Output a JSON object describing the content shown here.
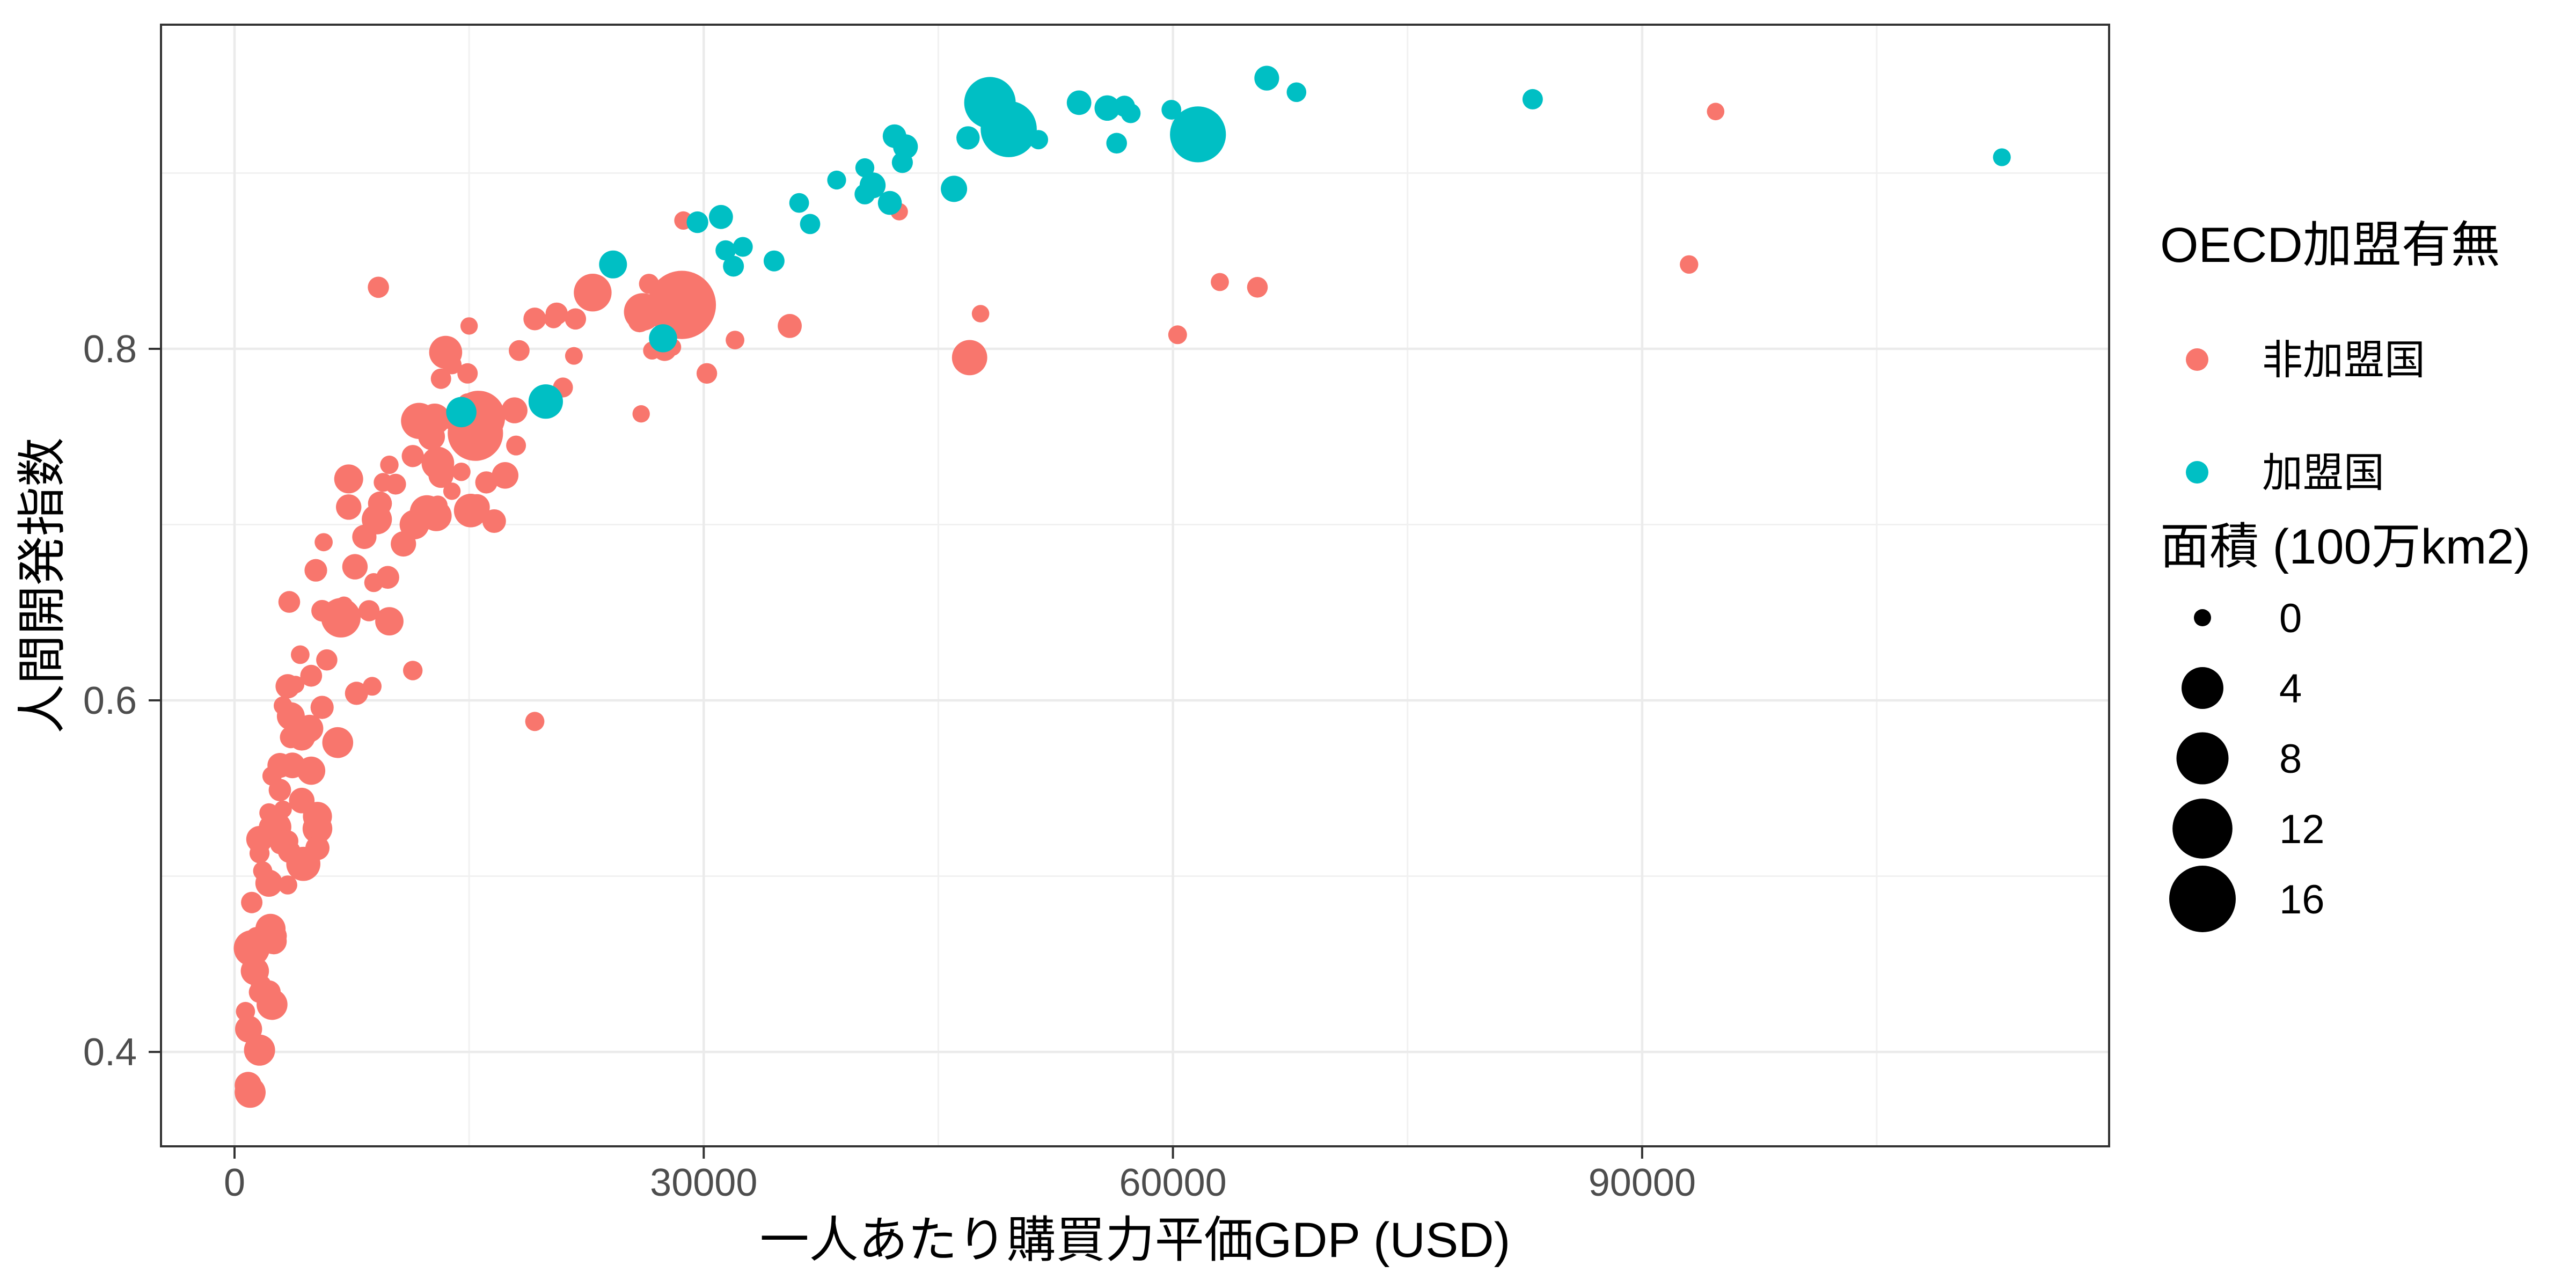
{
  "chart_data": {
    "type": "scatter",
    "title": "",
    "xlabel": "一人あたり購買力平価GDP (USD)",
    "ylabel": "人間開発指数",
    "xlim": [
      -4701,
      119857
    ],
    "ylim": [
      0.3463,
      0.9844
    ],
    "grid": "on",
    "legend_position": "right",
    "x_ticks": {
      "values": [
        0,
        30000,
        60000,
        90000
      ],
      "labels": [
        "0",
        "30000",
        "60000",
        "90000"
      ]
    },
    "y_ticks": {
      "values": [
        0.4,
        0.6,
        0.8
      ],
      "labels": [
        "0.4",
        "0.6",
        "0.8"
      ]
    },
    "x_minor": [
      15000,
      45000,
      75000,
      105000
    ],
    "y_minor": [
      0.5,
      0.7,
      0.9
    ],
    "color_legend": {
      "title": "OECD加盟有無",
      "items": [
        {
          "label": "非加盟国",
          "color": "#F8766D"
        },
        {
          "label": "加盟国",
          "color": "#00BFC4"
        }
      ]
    },
    "size_legend": {
      "title": "面積 (100万km2)",
      "breaks": [
        0,
        4,
        8,
        12,
        16
      ],
      "labels": [
        "0",
        "4",
        "8",
        "12",
        "16"
      ]
    },
    "series": [
      {
        "name": "非加盟国",
        "color": "#F8766D",
        "points": [
          [
            94700,
            0.935,
            0.0007
          ],
          [
            93000,
            0.848,
            0.0116
          ],
          [
            63000,
            0.838,
            0.0058
          ],
          [
            65400,
            0.835,
            0.0836
          ],
          [
            60300,
            0.808,
            0.0178
          ],
          [
            47700,
            0.82,
            0.0008
          ],
          [
            47000,
            0.795,
            2.15
          ],
          [
            35500,
            0.813,
            0.31
          ],
          [
            32000,
            0.805,
            0.0139
          ],
          [
            26700,
            0.799,
            0.0051
          ],
          [
            28000,
            0.801,
            0.0005
          ],
          [
            27500,
            0.8,
            0.331
          ],
          [
            25900,
            0.816,
            0.238
          ],
          [
            26100,
            0.821,
            2.725
          ],
          [
            28600,
            0.825,
            17.098
          ],
          [
            26500,
            0.837,
            0.057
          ],
          [
            21800,
            0.817,
            0.111
          ],
          [
            20400,
            0.817,
            0.0138
          ],
          [
            19200,
            0.817,
            0.208
          ],
          [
            18200,
            0.799,
            0.088
          ],
          [
            22900,
            0.832,
            2.78
          ],
          [
            20600,
            0.82,
            0.176
          ],
          [
            30200,
            0.786,
            0.0754
          ],
          [
            21000,
            0.778,
            0.051
          ],
          [
            26000,
            0.763,
            0.0004
          ],
          [
            28700,
            0.873,
            0.009
          ],
          [
            42500,
            0.878,
            0.0003
          ],
          [
            21700,
            0.796,
            0.002
          ],
          [
            19200,
            0.588,
            0.028
          ],
          [
            17300,
            0.728,
            0.582
          ],
          [
            16600,
            0.702,
            0.268
          ],
          [
            15500,
            0.71,
            0.488
          ],
          [
            15100,
            0.708,
            1.76
          ],
          [
            17900,
            0.765,
            0.513
          ],
          [
            15400,
            0.752,
            9.597
          ],
          [
            15600,
            0.761,
            8.516
          ],
          [
            16100,
            0.724,
            0.164
          ],
          [
            15000,
            0.813,
            0.0004
          ],
          [
            14400,
            0.754,
            0.087
          ],
          [
            18000,
            0.745,
            0.049
          ],
          [
            11800,
            0.759,
            2.382
          ],
          [
            13500,
            0.798,
            1.648
          ],
          [
            13200,
            0.783,
            0.066
          ],
          [
            13900,
            0.791,
            0.029
          ],
          [
            14900,
            0.769,
            0.051
          ],
          [
            16100,
            0.759,
            0.026
          ],
          [
            14900,
            0.786,
            0.07
          ],
          [
            13600,
            0.76,
            0.03
          ],
          [
            12600,
            0.75,
            0.604
          ],
          [
            13000,
            0.711,
            0.034
          ],
          [
            13200,
            0.728,
            0.407
          ],
          [
            12800,
            0.76,
            1.285
          ],
          [
            11500,
            0.758,
            0.276
          ],
          [
            11400,
            0.739,
            0.164
          ],
          [
            13000,
            0.735,
            1.564
          ],
          [
            9900,
            0.734,
            0.011
          ],
          [
            7300,
            0.726,
            0.912
          ],
          [
            9200,
            0.835,
            0.11
          ],
          [
            9500,
            0.724,
            0.0183
          ],
          [
            13900,
            0.719,
            0.0003
          ],
          [
            14500,
            0.73,
            0.0105
          ],
          [
            12900,
            0.705,
            1.221
          ],
          [
            12300,
            0.707,
            1.905
          ],
          [
            11500,
            0.7,
            1.001
          ],
          [
            9100,
            0.703,
            1.099
          ],
          [
            9300,
            0.712,
            0.3
          ],
          [
            8300,
            0.693,
            0.331
          ],
          [
            7700,
            0.676,
            0.447
          ],
          [
            5200,
            0.674,
            0.2
          ],
          [
            7300,
            0.71,
            0.447
          ],
          [
            3500,
            0.656,
            0.143
          ],
          [
            6800,
            0.647,
            3.287
          ],
          [
            8600,
            0.651,
            0.109
          ],
          [
            5600,
            0.651,
            0.13
          ],
          [
            5900,
            0.623,
            0.112
          ],
          [
            8900,
            0.667,
            0.021
          ],
          [
            9800,
            0.67,
            0.215
          ],
          [
            9900,
            0.645,
            0.824
          ],
          [
            11400,
            0.617,
            0.038
          ],
          [
            7800,
            0.604,
            0.237
          ],
          [
            8800,
            0.608,
            0.017
          ],
          [
            4600,
            0.581,
            0.181
          ],
          [
            4800,
            0.584,
            0.677
          ],
          [
            4900,
            0.614,
            0.148
          ],
          [
            3600,
            0.579,
            0.147
          ],
          [
            4900,
            0.56,
            0.796
          ],
          [
            6600,
            0.576,
            1.247
          ],
          [
            5600,
            0.596,
            0.239
          ],
          [
            3400,
            0.608,
            0.342
          ],
          [
            3600,
            0.591,
            0.753
          ],
          [
            2900,
            0.563,
            0.391
          ],
          [
            3700,
            0.563,
            0.475
          ],
          [
            4300,
            0.579,
            0.58
          ],
          [
            5300,
            0.527,
            1.031
          ],
          [
            5300,
            0.534,
            0.924
          ],
          [
            4400,
            0.507,
            1.886
          ],
          [
            4300,
            0.543,
            0.463
          ],
          [
            2700,
            0.528,
            0.945
          ],
          [
            3500,
            0.514,
            0.197
          ],
          [
            5300,
            0.516,
            0.322
          ],
          [
            3400,
            0.495,
            0.0232
          ],
          [
            4200,
            0.626,
            0.0149
          ],
          [
            2400,
            0.557,
            0.0289
          ],
          [
            3100,
            0.597,
            0.0122
          ],
          [
            3100,
            0.538,
            0.0019
          ],
          [
            3900,
            0.609,
            0.001
          ],
          [
            7000,
            0.654,
            0.004
          ],
          [
            2900,
            0.549,
            0.185
          ],
          [
            10800,
            0.689,
            0.438
          ],
          [
            10300,
            0.723,
            0.0893
          ],
          [
            5700,
            0.69,
            0.006
          ],
          [
            2200,
            0.496,
            0.653
          ],
          [
            1800,
            0.503,
            0.0277
          ],
          [
            2500,
            0.463,
            0.528
          ],
          [
            2300,
            0.528,
            0.242
          ],
          [
            2200,
            0.536,
            0.026
          ],
          [
            2300,
            0.47,
            1.104
          ],
          [
            1600,
            0.521,
            0.587
          ],
          [
            1600,
            0.513,
            0.057
          ],
          [
            3400,
            0.52,
            0.115
          ],
          [
            2400,
            0.427,
            1.24
          ],
          [
            2200,
            0.434,
            0.274
          ],
          [
            1000,
            0.377,
            1.267
          ],
          [
            1600,
            0.401,
            1.284
          ],
          [
            870,
            0.381,
            0.623
          ],
          [
            900,
            0.413,
            0.644
          ],
          [
            1100,
            0.459,
            2.345
          ],
          [
            700,
            0.423,
            0.0278
          ],
          [
            1100,
            0.485,
            0.118
          ],
          [
            1300,
            0.446,
            0.802
          ],
          [
            2600,
            0.466,
            0.246
          ],
          [
            1900,
            0.461,
            0.0361
          ],
          [
            1700,
            0.438,
            0.0717
          ],
          [
            1400,
            0.465,
            0.111
          ],
          [
            2200,
            0.466,
            0.0113
          ],
          [
            1600,
            0.434,
            0.118
          ],
          [
            2900,
            0.518,
            0.0304
          ]
        ]
      },
      {
        "name": "加盟国",
        "color": "#00BFC4",
        "points": [
          [
            113000,
            0.909,
            0.0026
          ],
          [
            83000,
            0.942,
            0.07
          ],
          [
            67900,
            0.946,
            0.041
          ],
          [
            66000,
            0.954,
            0.385
          ],
          [
            61600,
            0.922,
            9.834
          ],
          [
            59900,
            0.936,
            0.043
          ],
          [
            56900,
            0.938,
            0.103
          ],
          [
            57300,
            0.934,
            0.042
          ],
          [
            55800,
            0.937,
            0.45
          ],
          [
            56400,
            0.917,
            0.084
          ],
          [
            54000,
            0.94,
            0.357
          ],
          [
            51400,
            0.919,
            0.031
          ],
          [
            49500,
            0.925,
            9.985
          ],
          [
            48300,
            0.94,
            7.741
          ],
          [
            48600,
            0.925,
            0.338
          ],
          [
            46900,
            0.92,
            0.242
          ],
          [
            46000,
            0.891,
            0.549
          ],
          [
            42900,
            0.915,
            0.378
          ],
          [
            42200,
            0.921,
            0.268
          ],
          [
            42700,
            0.906,
            0.1
          ],
          [
            41900,
            0.883,
            0.301
          ],
          [
            40800,
            0.893,
            0.506
          ],
          [
            40300,
            0.903,
            0.021
          ],
          [
            40300,
            0.888,
            0.079
          ],
          [
            38500,
            0.896,
            0.02
          ],
          [
            36100,
            0.883,
            0.045
          ],
          [
            36800,
            0.871,
            0.065
          ],
          [
            34500,
            0.85,
            0.092
          ],
          [
            32500,
            0.858,
            0.049
          ],
          [
            31100,
            0.875,
            0.313
          ],
          [
            31900,
            0.847,
            0.093
          ],
          [
            31400,
            0.856,
            0.065
          ],
          [
            29600,
            0.872,
            0.132
          ],
          [
            27400,
            0.806,
            0.785
          ],
          [
            24200,
            0.848,
            0.756
          ],
          [
            19900,
            0.77,
            1.964
          ],
          [
            14500,
            0.764,
            1.139
          ]
        ]
      }
    ]
  },
  "layout_text": {
    "x_axis_title": "一人あたり購買力平価GDP (USD)",
    "y_axis_title": "人間開発指数",
    "color_legend_title": "OECD加盟有無",
    "size_legend_title": "面積 (100万km2)"
  }
}
